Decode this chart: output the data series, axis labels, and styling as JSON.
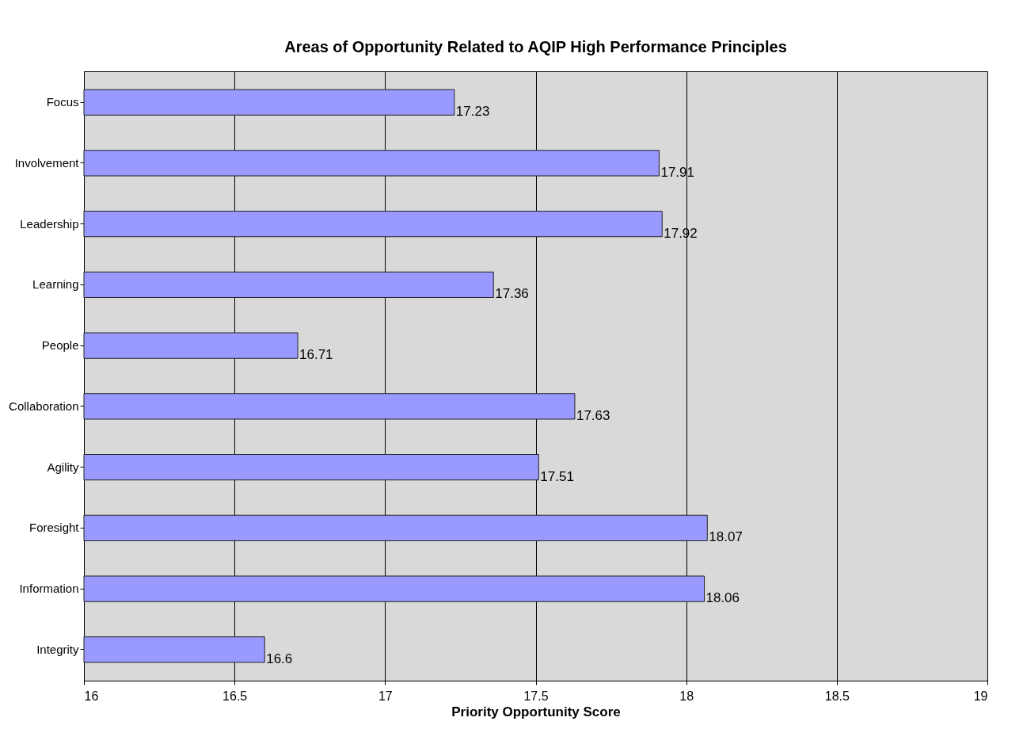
{
  "chart_data": {
    "type": "bar",
    "orientation": "horizontal",
    "title": "Areas of Opportunity Related to AQIP High Performance Principles",
    "xlabel": "Priority Opportunity Score",
    "categories": [
      "Focus",
      "Involvement",
      "Leadership",
      "Learning",
      "People",
      "Collaboration",
      "Agility",
      "Foresight",
      "Information",
      "Integrity"
    ],
    "values": [
      17.23,
      17.91,
      17.92,
      17.36,
      16.71,
      17.63,
      17.51,
      18.07,
      18.06,
      16.6
    ],
    "color": "#9999ff",
    "xlim": [
      16,
      19
    ],
    "xticks": [
      16,
      16.5,
      17,
      17.5,
      18,
      18.5,
      19
    ],
    "grid": "x",
    "data_labels": true
  }
}
